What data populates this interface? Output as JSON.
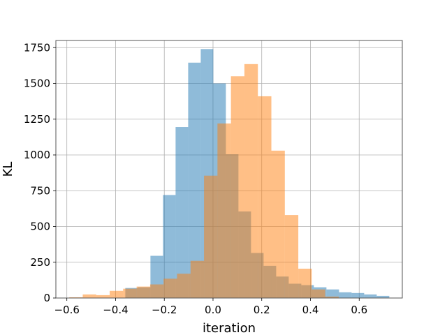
{
  "chart_data": {
    "type": "bar",
    "xlabel": "iteration",
    "ylabel": "KL",
    "xlim": [
      -0.645,
      0.777
    ],
    "ylim": [
      0,
      1800
    ],
    "grid": true,
    "x_ticks": [
      -0.6,
      -0.4,
      -0.2,
      0.0,
      0.2,
      0.4,
      0.6
    ],
    "x_tick_labels": [
      "−0.6",
      "−0.4",
      "−0.2",
      "0.0",
      "0.2",
      "0.4",
      "0.6"
    ],
    "y_ticks": [
      0,
      250,
      500,
      750,
      1000,
      1250,
      1500,
      1750
    ],
    "y_tick_labels": [
      "0",
      "250",
      "500",
      "750",
      "1000",
      "1250",
      "1500",
      "1750"
    ],
    "series": [
      {
        "color": "#1f77b4",
        "opacity": 0.5,
        "bin_width": 0.0516,
        "bin_edges_start": -0.36,
        "values": [
          70,
          75,
          295,
          720,
          1195,
          1645,
          1740,
          1500,
          1005,
          605,
          315,
          225,
          150,
          100,
          90,
          75,
          60,
          40,
          35,
          25,
          15
        ]
      },
      {
        "color": "#ff7f0e",
        "opacity": 0.5,
        "bin_width": 0.0553,
        "bin_edges_start": -0.59,
        "values": [
          5,
          25,
          20,
          50,
          65,
          80,
          95,
          135,
          170,
          260,
          855,
          1220,
          1550,
          1635,
          1410,
          1030,
          580,
          205,
          60,
          10
        ]
      }
    ]
  }
}
